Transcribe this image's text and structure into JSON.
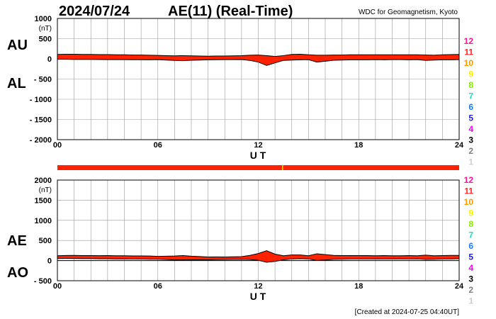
{
  "header": {
    "date": "2024/07/24",
    "title": "AE(11) (Real-Time)",
    "source": "WDC for Geomagnetism, Kyoto"
  },
  "footer": {
    "created": "[Created at 2024-07-25 04:40UT]"
  },
  "legend": {
    "stations": [
      {
        "label": "12",
        "color": "#ff1493"
      },
      {
        "label": "11",
        "color": "#ff2a2a"
      },
      {
        "label": "10",
        "color": "#ff9900"
      },
      {
        "label": "9",
        "color": "#ffee00"
      },
      {
        "label": "8",
        "color": "#88ee00"
      },
      {
        "label": "7",
        "color": "#22e0c0"
      },
      {
        "label": "6",
        "color": "#1e7cff"
      },
      {
        "label": "5",
        "color": "#2020e0"
      },
      {
        "label": "4",
        "color": "#ff00ff"
      },
      {
        "label": "3",
        "color": "#000000"
      },
      {
        "label": "2",
        "color": "#808080"
      },
      {
        "label": "1",
        "color": "#d0d0d0"
      }
    ]
  },
  "colors": {
    "fill": "#ff2200",
    "outline": "#000000",
    "grid": "#999999",
    "station_bar": "#ff2200",
    "station_mark": "#ffcc00"
  },
  "chart_data": [
    {
      "type": "area",
      "name": "AU/AL",
      "title": "AE(11) (Real-Time)",
      "unit": "(nT)",
      "xlabel": "U T",
      "labels_upper": "AU",
      "labels_lower": "AL",
      "xlim": [
        0,
        24
      ],
      "ylim": [
        -2000,
        1000
      ],
      "xticks": [
        "00",
        "06",
        "12",
        "18",
        "24"
      ],
      "yticks": [
        "1000",
        "500",
        "0",
        "- 500",
        "- 1000",
        "- 1500",
        "- 2000"
      ],
      "x_step_hours": 0.5,
      "AU": [
        110,
        115,
        115,
        110,
        110,
        105,
        105,
        100,
        100,
        95,
        95,
        90,
        85,
        80,
        75,
        80,
        75,
        70,
        65,
        70,
        70,
        75,
        80,
        90,
        95,
        80,
        60,
        80,
        110,
        115,
        100,
        90,
        90,
        95,
        95,
        100,
        100,
        100,
        100,
        100,
        100,
        100,
        100,
        100,
        95,
        90,
        100,
        105,
        110
      ],
      "AL": [
        -10,
        -12,
        -15,
        -15,
        -15,
        -18,
        -20,
        -20,
        -20,
        -22,
        -22,
        -25,
        -20,
        -30,
        -40,
        -45,
        -35,
        -30,
        -25,
        -22,
        -20,
        -20,
        -18,
        -40,
        -80,
        -165,
        -100,
        -40,
        -30,
        -25,
        -20,
        -80,
        -60,
        -35,
        -30,
        -25,
        -25,
        -25,
        -20,
        -25,
        -20,
        -20,
        -25,
        -20,
        -40,
        -30,
        -25,
        -25,
        -20
      ]
    },
    {
      "type": "area",
      "name": "AE/AO",
      "unit": "(nT)",
      "xlabel": "U T",
      "labels_upper": "AE",
      "labels_lower": "AO",
      "xlim": [
        0,
        24
      ],
      "ylim": [
        -500,
        2000
      ],
      "xticks": [
        "00",
        "06",
        "12",
        "18",
        "24"
      ],
      "yticks": [
        "2000",
        "1500",
        "1000",
        "500",
        "0",
        "- 500"
      ],
      "derived": "AE = AU - AL, AO = (AU + AL) / 2"
    }
  ]
}
